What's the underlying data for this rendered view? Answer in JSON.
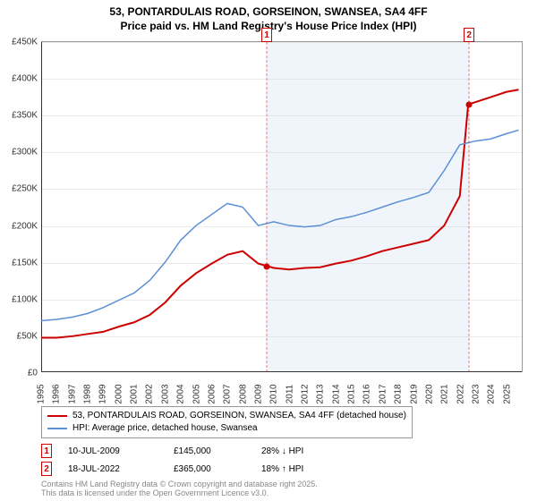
{
  "title": {
    "line1": "53, PONTARDULAIS ROAD, GORSEINON, SWANSEA, SA4 4FF",
    "line2": "Price paid vs. HM Land Registry's House Price Index (HPI)"
  },
  "chart": {
    "type": "line",
    "background_color": "#ffffff",
    "grid_color": "#cccccc",
    "axis_color": "#333333",
    "shade_band_color": "rgba(70,130,200,0.08)",
    "shade_band": {
      "x_start": 2009.52,
      "x_end": 2022.55
    },
    "xlim": [
      1995,
      2026
    ],
    "ylim": [
      0,
      450000
    ],
    "ytick_step": 50000,
    "ytick_prefix": "£",
    "ytick_suffix": "K",
    "ytick_divisor": 1000,
    "xtick_step": 1,
    "title_fontsize": 12,
    "tick_fontsize": 10,
    "series": [
      {
        "id": "price_paid",
        "label": "53, PONTARDULAIS ROAD, GORSEINON, SWANSEA, SA4 4FF (detached house)",
        "color": "#cc0000",
        "line_width": 2,
        "data": [
          [
            1995,
            47000
          ],
          [
            1996,
            47000
          ],
          [
            1997,
            49000
          ],
          [
            1998,
            52000
          ],
          [
            1999,
            55000
          ],
          [
            2000,
            62000
          ],
          [
            2001,
            68000
          ],
          [
            2002,
            78000
          ],
          [
            2003,
            95000
          ],
          [
            2004,
            118000
          ],
          [
            2005,
            135000
          ],
          [
            2006,
            148000
          ],
          [
            2007,
            160000
          ],
          [
            2008,
            165000
          ],
          [
            2009,
            148000
          ],
          [
            2009.52,
            145000
          ],
          [
            2010,
            142000
          ],
          [
            2011,
            140000
          ],
          [
            2012,
            142000
          ],
          [
            2013,
            143000
          ],
          [
            2014,
            148000
          ],
          [
            2015,
            152000
          ],
          [
            2016,
            158000
          ],
          [
            2017,
            165000
          ],
          [
            2018,
            170000
          ],
          [
            2019,
            175000
          ],
          [
            2020,
            180000
          ],
          [
            2021,
            200000
          ],
          [
            2022,
            240000
          ],
          [
            2022.54,
            365000
          ],
          [
            2022.55,
            365000
          ],
          [
            2023,
            368000
          ],
          [
            2024,
            375000
          ],
          [
            2025,
            382000
          ],
          [
            2025.8,
            385000
          ]
        ]
      },
      {
        "id": "hpi",
        "label": "HPI: Average price, detached house, Swansea",
        "color": "#5b8fd6",
        "line_width": 1.5,
        "data": [
          [
            1995,
            70000
          ],
          [
            1996,
            72000
          ],
          [
            1997,
            75000
          ],
          [
            1998,
            80000
          ],
          [
            1999,
            88000
          ],
          [
            2000,
            98000
          ],
          [
            2001,
            108000
          ],
          [
            2002,
            125000
          ],
          [
            2003,
            150000
          ],
          [
            2004,
            180000
          ],
          [
            2005,
            200000
          ],
          [
            2006,
            215000
          ],
          [
            2007,
            230000
          ],
          [
            2008,
            225000
          ],
          [
            2009,
            200000
          ],
          [
            2010,
            205000
          ],
          [
            2011,
            200000
          ],
          [
            2012,
            198000
          ],
          [
            2013,
            200000
          ],
          [
            2014,
            208000
          ],
          [
            2015,
            212000
          ],
          [
            2016,
            218000
          ],
          [
            2017,
            225000
          ],
          [
            2018,
            232000
          ],
          [
            2019,
            238000
          ],
          [
            2020,
            245000
          ],
          [
            2021,
            275000
          ],
          [
            2022,
            310000
          ],
          [
            2023,
            315000
          ],
          [
            2024,
            318000
          ],
          [
            2025,
            325000
          ],
          [
            2025.8,
            330000
          ]
        ]
      }
    ],
    "markers": [
      {
        "num": "1",
        "x": 2009.52,
        "y": 145000,
        "dot_y": 145000,
        "color": "#cc0000"
      },
      {
        "num": "2",
        "x": 2022.55,
        "y": 365000,
        "dot_y": 365000,
        "color": "#cc0000"
      }
    ]
  },
  "legend": {
    "border_color": "#999999",
    "fontsize": 10
  },
  "footnotes": [
    {
      "num": "1",
      "date": "10-JUL-2009",
      "price": "£145,000",
      "delta": "28% ↓ HPI"
    },
    {
      "num": "2",
      "date": "18-JUL-2022",
      "price": "£365,000",
      "delta": "18% ↑ HPI"
    }
  ],
  "copyright": {
    "line1": "Contains HM Land Registry data © Crown copyright and database right 2025.",
    "line2": "This data is licensed under the Open Government Licence v3.0."
  }
}
